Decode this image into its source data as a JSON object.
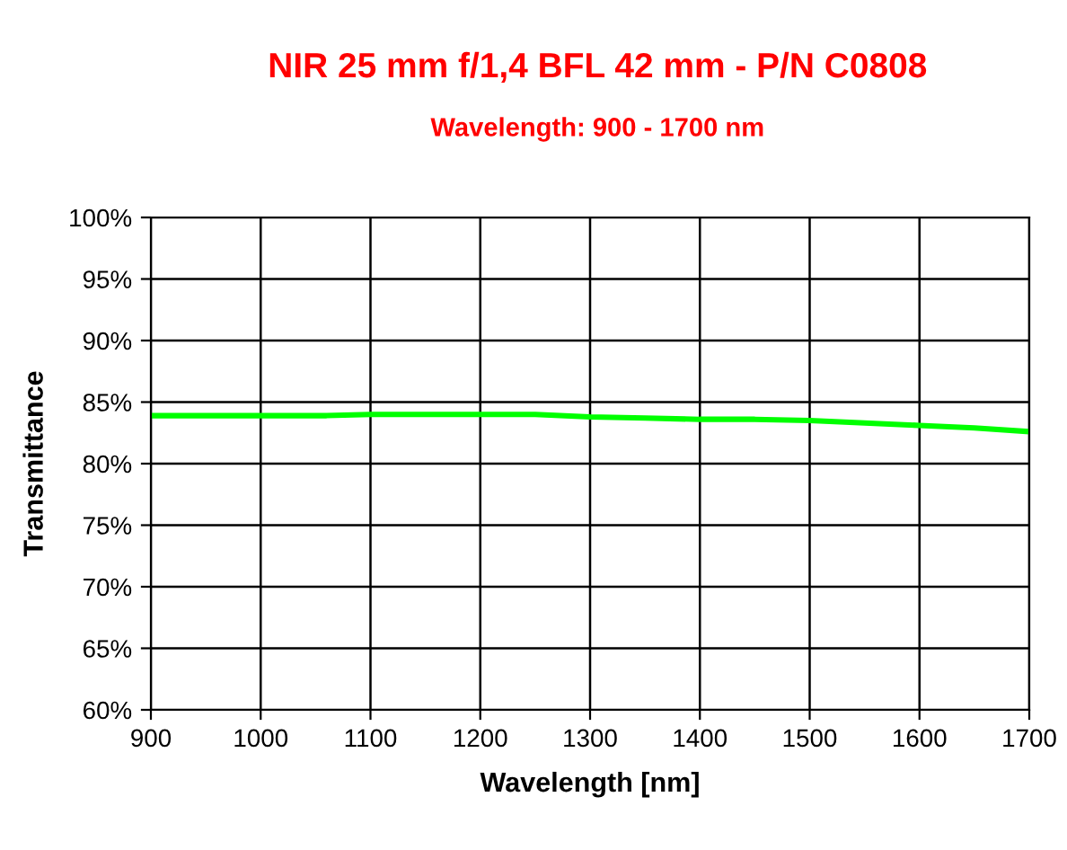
{
  "chart_data": {
    "type": "line",
    "title": "NIR 25 mm f/1,4 BFL 42 mm - P/N C0808",
    "subtitle": "Wavelength: 900 - 1700 nm",
    "xlabel": "Wavelength [nm]",
    "ylabel": "Transmittance",
    "x": [
      900,
      1000,
      1060,
      1100,
      1150,
      1200,
      1250,
      1300,
      1350,
      1400,
      1450,
      1500,
      1550,
      1600,
      1650,
      1700
    ],
    "series": [
      {
        "color": "#00ff00",
        "values": [
          83.9,
          83.9,
          83.9,
          84.0,
          84.0,
          84.0,
          84.0,
          83.8,
          83.7,
          83.6,
          83.6,
          83.5,
          83.3,
          83.1,
          82.9,
          82.6
        ]
      }
    ],
    "xlim": [
      900,
      1700
    ],
    "xticks": [
      900,
      1000,
      1100,
      1200,
      1300,
      1400,
      1500,
      1600,
      1700
    ],
    "ylim": [
      60,
      100
    ],
    "yticks": [
      {
        "value": 60,
        "label": "60%"
      },
      {
        "value": 65,
        "label": "65%"
      },
      {
        "value": 70,
        "label": "70%"
      },
      {
        "value": 75,
        "label": "75%"
      },
      {
        "value": 80,
        "label": "80%"
      },
      {
        "value": 85,
        "label": "85%"
      },
      {
        "value": 90,
        "label": "90%"
      },
      {
        "value": 95,
        "label": "95%"
      },
      {
        "value": 100,
        "label": "100%"
      }
    ],
    "grid": true,
    "legend": false,
    "marker": "none",
    "line_style": "solid"
  }
}
